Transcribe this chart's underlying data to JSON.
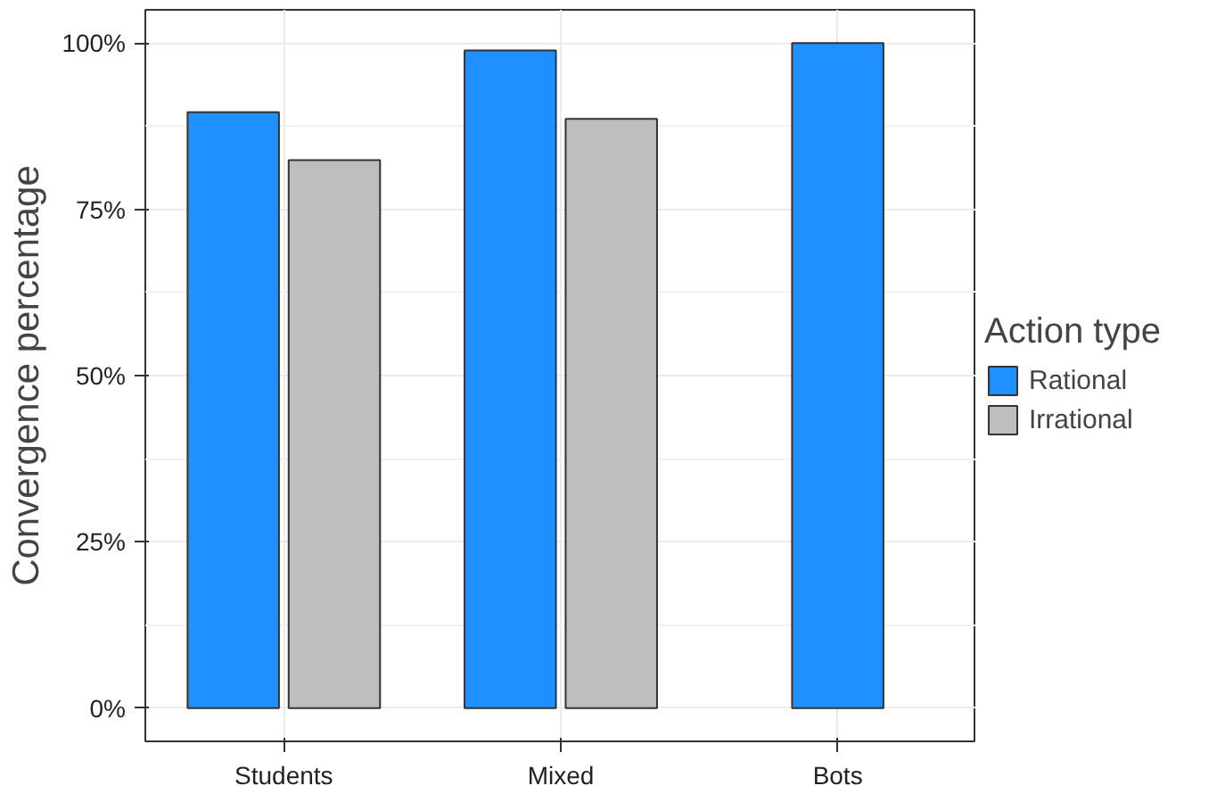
{
  "chart_data": {
    "type": "bar",
    "ylabel": "Convergence percentage",
    "legend_title": "Action type",
    "categories": [
      "Students",
      "Mixed",
      "Bots"
    ],
    "series": [
      {
        "name": "Rational",
        "color": "#1e90ff",
        "values": [
          89.6,
          98.9,
          100
        ]
      },
      {
        "name": "Irrational",
        "color": "#bebebe",
        "values": [
          82.4,
          88.6,
          null
        ]
      }
    ],
    "ylim": [
      -5,
      105
    ],
    "yticks": [
      {
        "value": 0,
        "label": "0%"
      },
      {
        "value": 25,
        "label": "25%"
      },
      {
        "value": 50,
        "label": "50%"
      },
      {
        "value": 75,
        "label": "75%"
      },
      {
        "value": 100,
        "label": "100%"
      }
    ],
    "grid": true,
    "legend": "right"
  }
}
